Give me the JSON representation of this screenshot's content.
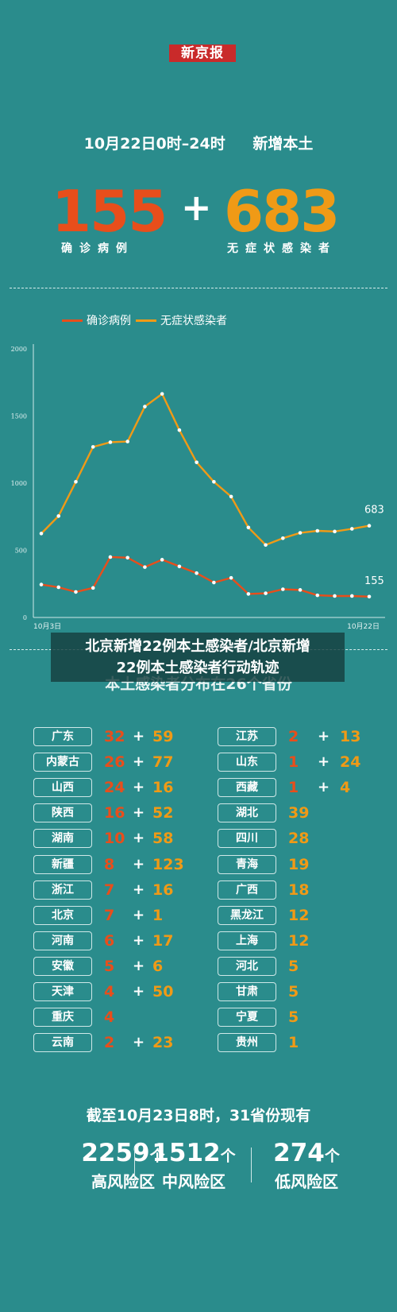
{
  "logo": "新京报",
  "headline": {
    "time": "10月22日0时–24时",
    "label": "新增本土"
  },
  "totals": {
    "confirmed": "155",
    "confirmed_label": "确诊病例",
    "plus": "+",
    "asymptomatic": "683",
    "asymptomatic_label": "无症状感染者"
  },
  "chart_data": {
    "type": "line",
    "x_start_label": "10月3日",
    "x_end_label": "10月22日",
    "ylim": [
      0,
      2000
    ],
    "yticks": [
      0,
      500,
      1000,
      1500,
      2000
    ],
    "grid": false,
    "legend_position": "top",
    "series": [
      {
        "name": "确诊病例",
        "color": "#e84e1b",
        "values": [
          245,
          225,
          190,
          220,
          450,
          445,
          375,
          430,
          380,
          330,
          260,
          295,
          175,
          180,
          210,
          205,
          165,
          160,
          160,
          155
        ]
      },
      {
        "name": "无症状感染者",
        "color": "#f09a16",
        "values": [
          625,
          755,
          1010,
          1270,
          1305,
          1310,
          1570,
          1665,
          1395,
          1155,
          1010,
          900,
          670,
          540,
          590,
          630,
          645,
          640,
          660,
          683
        ]
      }
    ],
    "end_labels": [
      "155",
      "683"
    ]
  },
  "overlay_text": [
    "北京新增22例本土感染者/北京新增",
    "22例本土感染者行动轨迹"
  ],
  "subtitle": "本土感染者分布在26个省份",
  "provinces_left": [
    {
      "name": "广东",
      "c": "32",
      "a": "59"
    },
    {
      "name": "内蒙古",
      "c": "26",
      "a": "77"
    },
    {
      "name": "山西",
      "c": "24",
      "a": "16"
    },
    {
      "name": "陕西",
      "c": "16",
      "a": "52"
    },
    {
      "name": "湖南",
      "c": "10",
      "a": "58"
    },
    {
      "name": "新疆",
      "c": "8",
      "a": "123"
    },
    {
      "name": "浙江",
      "c": "7",
      "a": "16"
    },
    {
      "name": "北京",
      "c": "7",
      "a": "1"
    },
    {
      "name": "河南",
      "c": "6",
      "a": "17"
    },
    {
      "name": "安徽",
      "c": "5",
      "a": "6"
    },
    {
      "name": "天津",
      "c": "4",
      "a": "50"
    },
    {
      "name": "重庆",
      "c": "4",
      "a": ""
    },
    {
      "name": "云南",
      "c": "2",
      "a": "23"
    }
  ],
  "provinces_right": [
    {
      "name": "江苏",
      "c": "2",
      "a": "13"
    },
    {
      "name": "山东",
      "c": "1",
      "a": "24"
    },
    {
      "name": "西藏",
      "c": "1",
      "a": "4"
    },
    {
      "name": "湖北",
      "c": "",
      "a": "39"
    },
    {
      "name": "四川",
      "c": "",
      "a": "28"
    },
    {
      "name": "青海",
      "c": "",
      "a": "19"
    },
    {
      "name": "广西",
      "c": "",
      "a": "18"
    },
    {
      "name": "黑龙江",
      "c": "",
      "a": "12"
    },
    {
      "name": "上海",
      "c": "",
      "a": "12"
    },
    {
      "name": "河北",
      "c": "",
      "a": "5"
    },
    {
      "name": "甘肃",
      "c": "",
      "a": "5"
    },
    {
      "name": "宁夏",
      "c": "",
      "a": "5"
    },
    {
      "name": "贵州",
      "c": "",
      "a": "1"
    }
  ],
  "summary": "截至10月23日8时，31省份现有",
  "risk_areas": [
    {
      "count": "2259",
      "unit": "个",
      "label": "高风险区"
    },
    {
      "count": "1512",
      "unit": "个",
      "label": "中风险区"
    },
    {
      "count": "274",
      "unit": "个",
      "label": "低风险区"
    }
  ]
}
